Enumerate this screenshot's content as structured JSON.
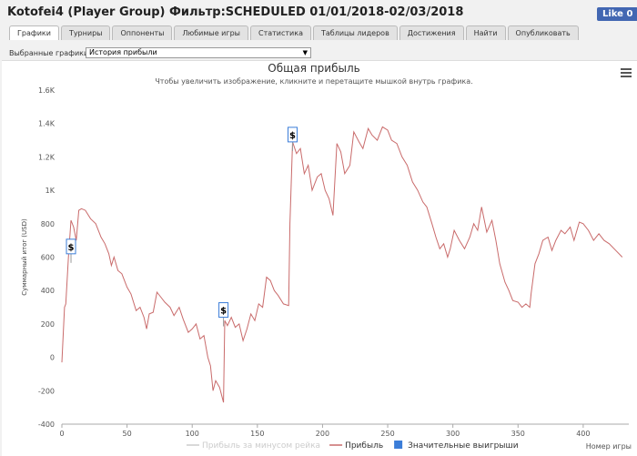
{
  "header": {
    "title": "Kotofei4 (Player Group) Фильтр:SCHEDULED 01/01/2018-02/03/2018",
    "like": "Like 0"
  },
  "tabs": [
    "Графики",
    "Турниры",
    "Оппоненты",
    "Любимые игры",
    "Статистика",
    "Таблицы лидеров",
    "Достижения",
    "Найти",
    "Опубликовать"
  ],
  "selector": {
    "label": "Выбранные графики:",
    "value": "История прибыли"
  },
  "chart_data": {
    "type": "line",
    "title": "Общая прибыль",
    "subtitle": "Чтобы увеличить изображение, кликните и перетащите мышкой внутрь графика.",
    "x_label": "Номер игры",
    "y_label": "Суммарный итог (USD)",
    "xlim": [
      0,
      435
    ],
    "xticks": [
      0,
      50,
      100,
      150,
      200,
      250,
      300,
      350,
      400
    ],
    "ylim": [
      -400,
      1600
    ],
    "yticks": [
      -400,
      -200,
      0,
      200,
      400,
      600,
      800,
      {
        "value": 1000,
        "label": "1K"
      },
      {
        "value": 1200,
        "label": "1.2K"
      },
      {
        "value": 1400,
        "label": "1.4K"
      },
      {
        "value": 1600,
        "label": "1.6K"
      }
    ],
    "grid": false,
    "series": [
      {
        "name": "Прибыль за минусом рейка",
        "color": "#cccccc",
        "hidden": true
      },
      {
        "name": "Прибыль",
        "color": "#c96b6b",
        "x": [
          0,
          2,
          3,
          5,
          7,
          9,
          11,
          13,
          15,
          18,
          22,
          26,
          30,
          33,
          36,
          38,
          40,
          43,
          46,
          50,
          53,
          57,
          60,
          63,
          65,
          67,
          70,
          73,
          76,
          79,
          83,
          86,
          90,
          93,
          97,
          100,
          103,
          106,
          109,
          112,
          114,
          116,
          118,
          121,
          124,
          125,
          127,
          130,
          133,
          136,
          139,
          142,
          145,
          148,
          151,
          154,
          157,
          160,
          163,
          166,
          170,
          174,
          175,
          177,
          180,
          183,
          186,
          189,
          192,
          196,
          199,
          202,
          205,
          208,
          211,
          214,
          217,
          221,
          224,
          228,
          231,
          235,
          238,
          242,
          246,
          250,
          253,
          257,
          261,
          265,
          269,
          273,
          277,
          280,
          284,
          287,
          290,
          293,
          296,
          298,
          301,
          305,
          309,
          313,
          316,
          319,
          322,
          326,
          330,
          333,
          336,
          340,
          343,
          346,
          350,
          353,
          356,
          359,
          360,
          363,
          366,
          369,
          373,
          376,
          379,
          383,
          386,
          390,
          393,
          397,
          400,
          404,
          408,
          412,
          416,
          420,
          425,
          430
        ],
        "values": [
          -30,
          300,
          320,
          600,
          820,
          780,
          700,
          880,
          890,
          880,
          830,
          800,
          720,
          680,
          620,
          550,
          600,
          520,
          500,
          420,
          380,
          280,
          300,
          240,
          170,
          260,
          270,
          390,
          360,
          330,
          300,
          250,
          300,
          230,
          150,
          170,
          200,
          110,
          130,
          0,
          -50,
          -200,
          -140,
          -180,
          -270,
          220,
          190,
          240,
          180,
          200,
          100,
          170,
          260,
          220,
          320,
          300,
          480,
          460,
          400,
          370,
          320,
          310,
          800,
          1290,
          1220,
          1250,
          1100,
          1150,
          1000,
          1080,
          1100,
          1000,
          950,
          850,
          1280,
          1230,
          1100,
          1150,
          1350,
          1290,
          1250,
          1370,
          1330,
          1300,
          1380,
          1360,
          1300,
          1280,
          1200,
          1150,
          1050,
          1000,
          930,
          900,
          800,
          720,
          650,
          680,
          600,
          650,
          760,
          700,
          650,
          720,
          800,
          760,
          900,
          750,
          820,
          700,
          560,
          450,
          400,
          340,
          330,
          300,
          320,
          300,
          380,
          560,
          620,
          700,
          720,
          640,
          700,
          760,
          740,
          780,
          700,
          810,
          800,
          760,
          700,
          740,
          700,
          680,
          640,
          600
        ]
      },
      {
        "name": "Значительные выигрыши",
        "color": "#3b7dd8",
        "marker": "flag",
        "flag_text": "$",
        "x": [
          7,
          124,
          177
        ],
        "values": [
          620,
          240,
          1290
        ]
      }
    ]
  }
}
